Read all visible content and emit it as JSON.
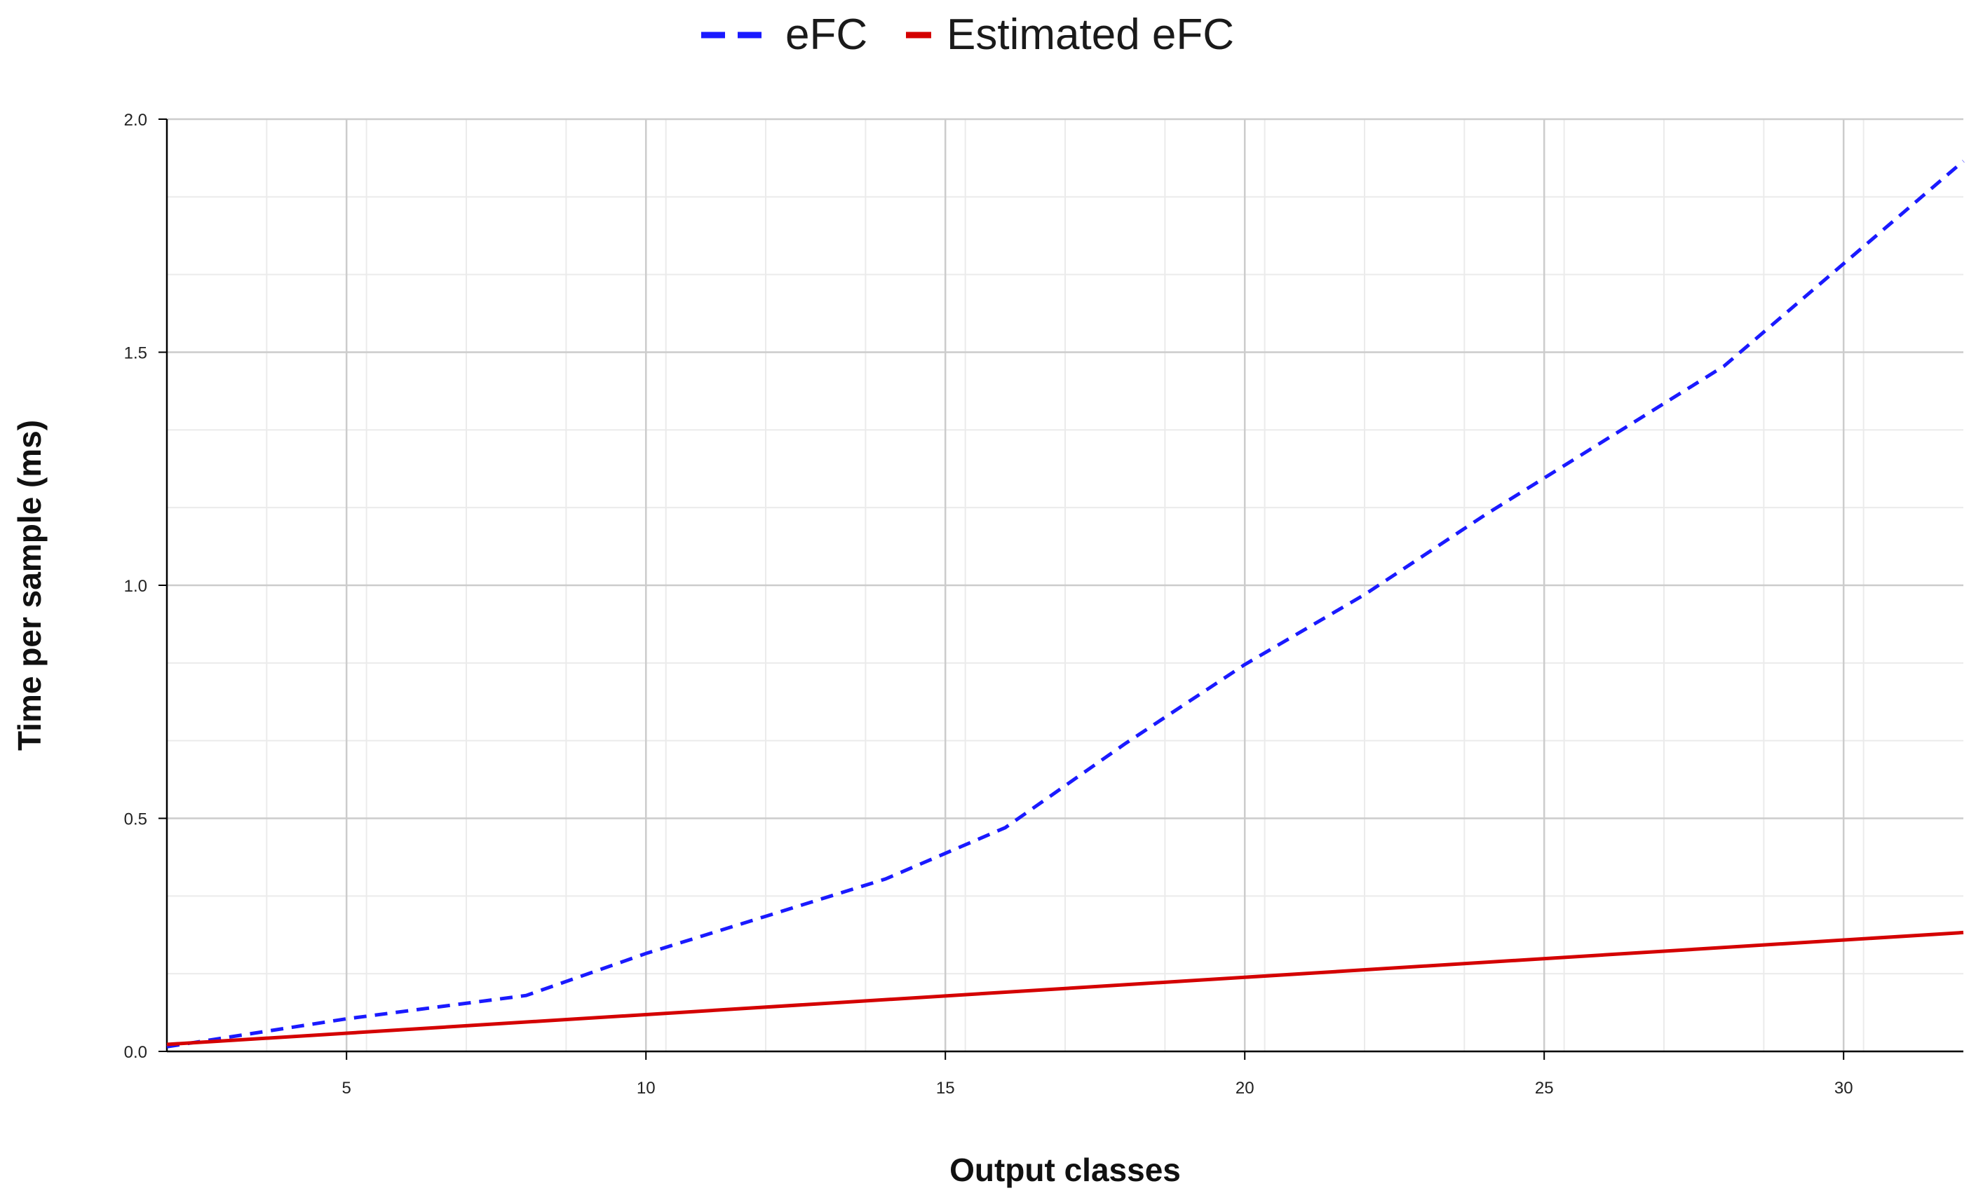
{
  "chart_data": {
    "type": "line",
    "title": "",
    "xlabel": "Output classes",
    "ylabel": "Time per sample (ms)",
    "xlim": [
      2,
      32
    ],
    "ylim": [
      0,
      2.0
    ],
    "xticks": [
      5,
      10,
      15,
      20,
      25,
      30
    ],
    "xtick_labels": [
      "5",
      "10",
      "15",
      "20",
      "25",
      "30"
    ],
    "yticks": [
      0,
      0.5,
      1.0,
      1.5,
      2.0
    ],
    "ytick_labels": [
      "0.0",
      "0.5",
      "1.0",
      "1.5",
      "2.0"
    ],
    "x_minor_step": 1.666667,
    "y_minor_step": 0.166667,
    "grid": true,
    "legend_position": "top-center",
    "series": [
      {
        "name": "eFC",
        "color": "#1a1aff",
        "dash": "dashed",
        "x": [
          2,
          5,
          8,
          10,
          12,
          14,
          16,
          18,
          20,
          22,
          24,
          26,
          28,
          30,
          32
        ],
        "y": [
          0.01,
          0.07,
          0.12,
          0.21,
          0.29,
          0.37,
          0.48,
          0.66,
          0.83,
          0.98,
          1.15,
          1.31,
          1.47,
          1.69,
          1.91
        ]
      },
      {
        "name": "Estimated eFC",
        "color": "#d40000",
        "dash": "solid",
        "x": [
          2,
          32
        ],
        "y": [
          0.015,
          0.255
        ]
      }
    ]
  }
}
